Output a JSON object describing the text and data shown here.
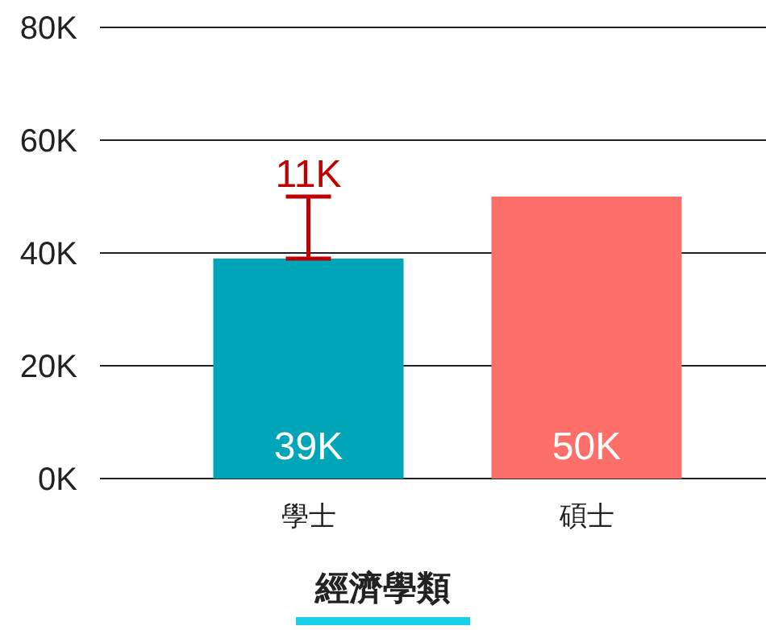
{
  "chart_data": {
    "type": "bar",
    "xlabel": "經濟學類",
    "categories": [
      "學士",
      "碩士"
    ],
    "values": [
      39000,
      50000
    ],
    "colors": [
      "#00a6b8",
      "#ff6f69"
    ],
    "value_labels": [
      "39K",
      "50K"
    ],
    "errors": [
      [
        39000,
        50000
      ],
      null
    ],
    "ylim": [
      0,
      80000
    ],
    "yticks": [
      {
        "value": 0,
        "label": "0K"
      },
      {
        "value": 20000,
        "label": "20K"
      },
      {
        "value": 40000,
        "label": "40K"
      },
      {
        "value": 60000,
        "label": "60K"
      },
      {
        "value": 80000,
        "label": "80K"
      }
    ],
    "grid": "y",
    "annotations": [
      {
        "text": "11K",
        "x": "學士",
        "y": 50000
      }
    ]
  }
}
